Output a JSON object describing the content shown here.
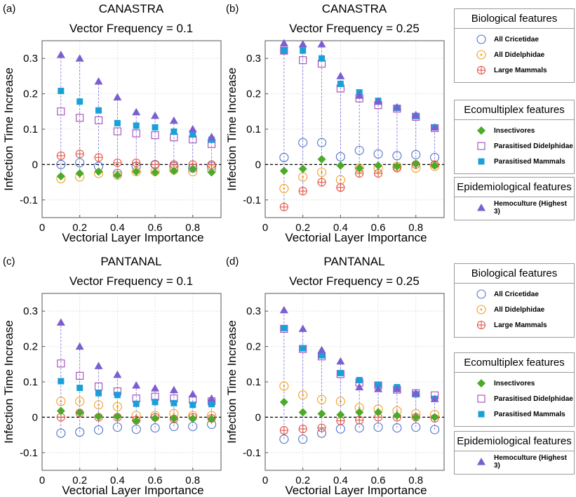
{
  "colors": {
    "cricetidae": "#4f74c9",
    "didelphidae": "#f0a020",
    "large_mammals": "#e05545",
    "insectivores": "#4caa2a",
    "parasitised_didelphidae": "#a24bb5",
    "parasitised_mammals": "#1aa0d8",
    "hemoculture": "#7b5fd0",
    "stem": "#7b6ae0",
    "grid": "#d0d0d0"
  },
  "series_info": [
    {
      "key": "cricetidae",
      "name": "All Cricetidae",
      "marker": "open-circle",
      "color_key": "cricetidae"
    },
    {
      "key": "didelphidae",
      "name": "All Didelphidae",
      "marker": "dot-circle",
      "color_key": "didelphidae"
    },
    {
      "key": "large_mammals",
      "name": "Large Mammals",
      "marker": "cross-circle",
      "color_key": "large_mammals"
    },
    {
      "key": "insectivores",
      "name": "Insectivores",
      "marker": "diamond",
      "color_key": "insectivores"
    },
    {
      "key": "parasitised_didelphidae",
      "name": "Parasitised Didelphidae",
      "marker": "open-square",
      "color_key": "parasitised_didelphidae"
    },
    {
      "key": "parasitised_mammals",
      "name": "Parasitised Mammals",
      "marker": "square",
      "color_key": "parasitised_mammals"
    },
    {
      "key": "hemoculture",
      "name": "Hemoculture (Highest 3)",
      "marker": "triangle",
      "color_key": "hemoculture"
    }
  ],
  "legend_groups": [
    {
      "title": "Biological features",
      "items": [
        "All Cricetidae",
        "All Didelphidae",
        "Large Mammals"
      ]
    },
    {
      "title": "Ecomultiplex features",
      "items": [
        "Insectivores",
        "Parasitised Didelphidae",
        "Parasitised Mammals"
      ]
    },
    {
      "title": "Epidemiological features",
      "items": [
        "Hemoculture (Highest 3)"
      ]
    }
  ],
  "chart_data": [
    {
      "type": "scatter",
      "panel_label": "(a)",
      "title": "CANASTRA",
      "subtitle": "Vector Frequency = 0.1",
      "xlabel": "Vectorial Layer Importance",
      "ylabel": "Infection Time Increase",
      "xlim": [
        0,
        0.95
      ],
      "ylim": [
        -0.15,
        0.35
      ],
      "xticks": [
        "0",
        "0.2",
        "0.4",
        "0.6",
        "0.8"
      ],
      "yticks": [
        "-0.1",
        "0",
        "0.1",
        "0.2",
        "0.3"
      ],
      "x": [
        0.1,
        0.2,
        0.3,
        0.4,
        0.5,
        0.6,
        0.7,
        0.8,
        0.9
      ],
      "series": {
        "cricetidae": [
          0.0,
          0.005,
          -0.005,
          -0.025,
          -0.005,
          0.0,
          -0.005,
          -0.01,
          -0.005
        ],
        "didelphidae": [
          -0.04,
          -0.035,
          -0.025,
          -0.03,
          -0.02,
          -0.02,
          -0.015,
          -0.02,
          -0.015
        ],
        "large_mammals": [
          0.025,
          0.03,
          0.02,
          0.005,
          0.005,
          0.0,
          0.0,
          0.0,
          0.0
        ],
        "insectivores": [
          -0.033,
          -0.025,
          -0.02,
          -0.03,
          -0.02,
          -0.022,
          -0.018,
          -0.012,
          -0.022
        ],
        "parasitised_didelphidae": [
          0.15,
          0.132,
          0.125,
          0.094,
          0.088,
          0.083,
          0.077,
          0.071,
          0.058
        ],
        "parasitised_mammals": [
          0.208,
          0.178,
          0.153,
          0.117,
          0.11,
          0.105,
          0.093,
          0.085,
          0.07
        ],
        "hemoculture": [
          0.31,
          0.3,
          0.235,
          0.19,
          0.148,
          0.138,
          0.124,
          0.1,
          0.078
        ]
      }
    },
    {
      "type": "scatter",
      "panel_label": "(b)",
      "title": "CANASTRA",
      "subtitle": "Vector Frequency = 0.25",
      "xlabel": "Vectorial Layer Importance",
      "ylabel": "Infection Time Increase",
      "xlim": [
        0,
        0.95
      ],
      "ylim": [
        -0.15,
        0.35
      ],
      "xticks": [
        "0",
        "0.2",
        "0.4",
        "0.6",
        "0.8"
      ],
      "yticks": [
        "-0.1",
        "0",
        "0.1",
        "0.2",
        "0.3"
      ],
      "x": [
        0.1,
        0.2,
        0.3,
        0.4,
        0.5,
        0.6,
        0.7,
        0.8,
        0.9
      ],
      "series": {
        "cricetidae": [
          0.02,
          0.062,
          0.062,
          0.022,
          0.04,
          0.03,
          0.025,
          0.028,
          0.02
        ],
        "didelphidae": [
          -0.068,
          -0.035,
          -0.022,
          -0.043,
          -0.01,
          -0.01,
          -0.005,
          -0.01,
          -0.005
        ],
        "large_mammals": [
          -0.12,
          -0.075,
          -0.05,
          -0.065,
          -0.025,
          -0.025,
          -0.01,
          0.0,
          0.0
        ],
        "insectivores": [
          -0.018,
          -0.012,
          0.015,
          -0.003,
          -0.01,
          -0.003,
          -0.005,
          0.002,
          -0.003
        ],
        "parasitised_didelphidae": [
          0.322,
          0.295,
          0.285,
          0.215,
          0.187,
          0.168,
          0.158,
          0.135,
          0.103
        ],
        "parasitised_mammals": [
          0.322,
          0.322,
          0.3,
          0.228,
          0.204,
          0.18,
          0.16,
          0.137,
          0.105
        ],
        "hemoculture": [
          0.343,
          0.34,
          0.34,
          0.25,
          0.195,
          0.178,
          0.162,
          0.14,
          0.105
        ]
      }
    },
    {
      "type": "scatter",
      "panel_label": "(c)",
      "title": "PANTANAL",
      "subtitle": "Vector Frequency = 0.1",
      "xlabel": "Vectorial Layer Importance",
      "ylabel": "Infection Time Increase",
      "xlim": [
        0,
        0.95
      ],
      "ylim": [
        -0.15,
        0.35
      ],
      "xticks": [
        "0",
        "0.2",
        "0.4",
        "0.6",
        "0.8"
      ],
      "yticks": [
        "-0.1",
        "0",
        "0.1",
        "0.2",
        "0.3"
      ],
      "x": [
        0.1,
        0.2,
        0.3,
        0.4,
        0.5,
        0.6,
        0.7,
        0.8,
        0.9
      ],
      "series": {
        "cricetidae": [
          -0.045,
          -0.042,
          -0.036,
          -0.028,
          -0.034,
          -0.03,
          -0.026,
          -0.026,
          -0.02
        ],
        "didelphidae": [
          0.045,
          0.045,
          0.035,
          0.03,
          0.005,
          0.005,
          0.01,
          0.005,
          0.005
        ],
        "large_mammals": [
          0.0,
          0.012,
          0.0,
          0.0,
          -0.008,
          0.0,
          -0.005,
          0.0,
          -0.003
        ],
        "insectivores": [
          0.018,
          0.013,
          0.002,
          0.002,
          -0.01,
          -0.003,
          -0.004,
          -0.004,
          -0.005
        ],
        "parasitised_didelphidae": [
          0.152,
          0.117,
          0.087,
          0.073,
          0.053,
          0.058,
          0.053,
          0.05,
          0.045
        ],
        "parasitised_mammals": [
          0.102,
          0.083,
          0.068,
          0.063,
          0.038,
          0.043,
          0.04,
          0.035,
          0.037
        ],
        "hemoculture": [
          0.268,
          0.2,
          0.145,
          0.12,
          0.09,
          0.082,
          0.077,
          0.065,
          0.053
        ]
      }
    },
    {
      "type": "scatter",
      "panel_label": "(d)",
      "title": "PANTANAL",
      "subtitle": "Vector Frequency = 0.25",
      "xlabel": "Vectorial Layer Importance",
      "ylabel": "Infection Time Increase",
      "xlim": [
        0,
        0.95
      ],
      "ylim": [
        -0.15,
        0.35
      ],
      "xticks": [
        "0",
        "0.2",
        "0.4",
        "0.6",
        "0.8"
      ],
      "yticks": [
        "-0.1",
        "0",
        "0.1",
        "0.2",
        "0.3"
      ],
      "x": [
        0.1,
        0.2,
        0.3,
        0.4,
        0.5,
        0.6,
        0.7,
        0.8,
        0.9
      ],
      "series": {
        "cricetidae": [
          -0.062,
          -0.062,
          -0.045,
          -0.033,
          -0.03,
          -0.028,
          -0.03,
          -0.028,
          -0.035
        ],
        "didelphidae": [
          0.088,
          0.063,
          0.05,
          0.045,
          0.027,
          0.023,
          0.018,
          0.01,
          0.008
        ],
        "large_mammals": [
          -0.037,
          -0.033,
          -0.03,
          -0.01,
          -0.008,
          0.0,
          0.0,
          0.0,
          -0.003
        ],
        "insectivores": [
          0.043,
          0.014,
          0.01,
          0.007,
          0.014,
          0.014,
          0.005,
          0.0,
          0.0
        ],
        "parasitised_didelphidae": [
          0.25,
          0.193,
          0.172,
          0.122,
          0.098,
          0.09,
          0.078,
          0.068,
          0.062
        ],
        "parasitised_mammals": [
          0.252,
          0.195,
          0.175,
          0.125,
          0.105,
          0.092,
          0.085,
          0.065,
          0.052
        ],
        "hemoculture": [
          0.303,
          0.25,
          0.19,
          0.158,
          0.085,
          0.08,
          0.08,
          0.068,
          0.052
        ]
      }
    }
  ]
}
